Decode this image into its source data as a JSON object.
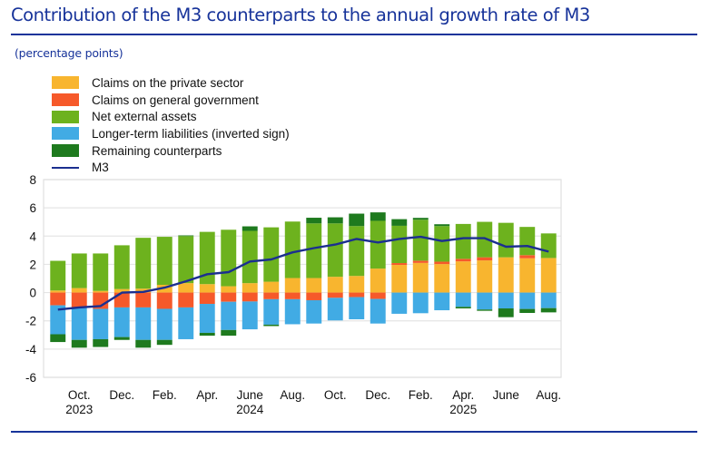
{
  "header": {
    "title": "Contribution of the M3 counterparts to the annual growth rate of M3",
    "subtitle": "(percentage points)"
  },
  "colors": {
    "title": "#17339a",
    "claims_private": "#f8b52f",
    "claims_government": "#f6592a",
    "net_external": "#6db21e",
    "longer_term": "#41abe4",
    "remaining": "#1e7a1e",
    "m3": "#1b2f8f",
    "grid": "#e5e5e5"
  },
  "legend": [
    {
      "key": "claims_private",
      "label": "Claims on the private sector",
      "type": "box"
    },
    {
      "key": "claims_government",
      "label": "Claims on general government",
      "type": "box"
    },
    {
      "key": "net_external",
      "label": "Net external assets",
      "type": "box"
    },
    {
      "key": "longer_term",
      "label": "Longer-term liabilities (inverted sign)",
      "type": "box"
    },
    {
      "key": "remaining",
      "label": "Remaining counterparts",
      "type": "box"
    },
    {
      "key": "m3",
      "label": "M3",
      "type": "line"
    }
  ],
  "chart_data": {
    "type": "bar",
    "stacked": true,
    "title": "Contribution of the M3 counterparts to the annual growth rate of M3",
    "ylabel": "percentage points",
    "xlabel": "",
    "ylim": [
      -6,
      8
    ],
    "yticks": [
      8,
      6,
      4,
      2,
      0,
      -2,
      -4,
      -6
    ],
    "grid": true,
    "legend_position": "top-left",
    "categories": [
      "Sep. 2023",
      "Oct. 2023",
      "Nov. 2023",
      "Dec. 2023",
      "Jan. 2024",
      "Feb. 2024",
      "Mar. 2024",
      "Apr. 2024",
      "May 2024",
      "June 2024",
      "July 2024",
      "Aug. 2024",
      "Sep. 2024",
      "Oct. 2024",
      "Nov. 2024",
      "Dec. 2024",
      "Jan. 2025",
      "Feb. 2025",
      "Mar. 2025",
      "Apr. 2025",
      "May 2025",
      "June 2025",
      "July 2025",
      "Aug. 2025"
    ],
    "xtick_labels": [
      {
        "index": 1,
        "label": "Oct.",
        "year": "2023"
      },
      {
        "index": 3,
        "label": "Dec.",
        "year": ""
      },
      {
        "index": 5,
        "label": "Feb.",
        "year": ""
      },
      {
        "index": 7,
        "label": "Apr.",
        "year": ""
      },
      {
        "index": 9,
        "label": "June",
        "year": "2024"
      },
      {
        "index": 11,
        "label": "Aug.",
        "year": ""
      },
      {
        "index": 13,
        "label": "Oct.",
        "year": ""
      },
      {
        "index": 15,
        "label": "Dec.",
        "year": ""
      },
      {
        "index": 17,
        "label": "Feb.",
        "year": ""
      },
      {
        "index": 19,
        "label": "Apr.",
        "year": "2025"
      },
      {
        "index": 21,
        "label": "June",
        "year": ""
      },
      {
        "index": 23,
        "label": "Aug.",
        "year": ""
      }
    ],
    "series": [
      {
        "key": "claims_private",
        "name": "Claims on the private sector",
        "kind": "bar",
        "values": [
          0.15,
          0.32,
          0.12,
          0.25,
          0.28,
          0.55,
          0.67,
          0.6,
          0.45,
          0.67,
          0.77,
          1.03,
          1.03,
          1.12,
          1.18,
          1.7,
          1.96,
          2.1,
          2.02,
          2.21,
          2.28,
          2.5,
          2.43,
          2.45
        ]
      },
      {
        "key": "claims_government",
        "name": "Claims on general government",
        "kind": "bar",
        "values": [
          -0.9,
          -1.05,
          -1.15,
          -1.05,
          -1.05,
          -1.15,
          -1.05,
          -0.8,
          -0.65,
          -0.63,
          -0.47,
          -0.47,
          -0.54,
          -0.37,
          -0.32,
          -0.45,
          0.13,
          0.16,
          0.17,
          0.18,
          0.22,
          0.0,
          0.22,
          0.0
        ]
      },
      {
        "key": "net_external",
        "name": "Net external assets",
        "kind": "bar",
        "values": [
          2.1,
          2.45,
          2.65,
          3.1,
          3.6,
          3.4,
          3.33,
          3.7,
          4.0,
          3.7,
          3.85,
          4.0,
          3.87,
          3.78,
          3.53,
          3.38,
          2.64,
          2.9,
          2.52,
          2.47,
          2.51,
          2.44,
          2.0,
          1.74
        ]
      },
      {
        "key": "longer_term",
        "name": "Longer-term liabilities (inverted sign)",
        "kind": "bar",
        "values": [
          -2.05,
          -2.3,
          -2.15,
          -2.1,
          -2.3,
          -2.2,
          -2.25,
          -2.05,
          -2.0,
          -1.97,
          -1.8,
          -1.77,
          -1.65,
          -1.6,
          -1.57,
          -1.74,
          -1.5,
          -1.46,
          -1.25,
          -1.01,
          -1.2,
          -1.12,
          -1.16,
          -1.1
        ]
      },
      {
        "key": "remaining",
        "name": "Remaining counterparts",
        "kind": "bar",
        "values": [
          -0.55,
          -0.55,
          -0.55,
          -0.2,
          -0.55,
          -0.35,
          0.05,
          -0.2,
          -0.4,
          0.32,
          -0.1,
          0.0,
          0.4,
          0.43,
          0.88,
          0.6,
          0.47,
          0.13,
          0.13,
          -0.11,
          -0.09,
          -0.62,
          -0.28,
          -0.3
        ]
      },
      {
        "key": "m3",
        "name": "M3",
        "kind": "line",
        "values": [
          -1.2,
          -1.05,
          -0.95,
          0.0,
          0.05,
          0.35,
          0.8,
          1.3,
          1.45,
          2.2,
          2.35,
          2.85,
          3.15,
          3.4,
          3.8,
          3.55,
          3.8,
          3.95,
          3.65,
          3.85,
          3.85,
          3.25,
          3.3,
          2.9
        ]
      }
    ]
  }
}
